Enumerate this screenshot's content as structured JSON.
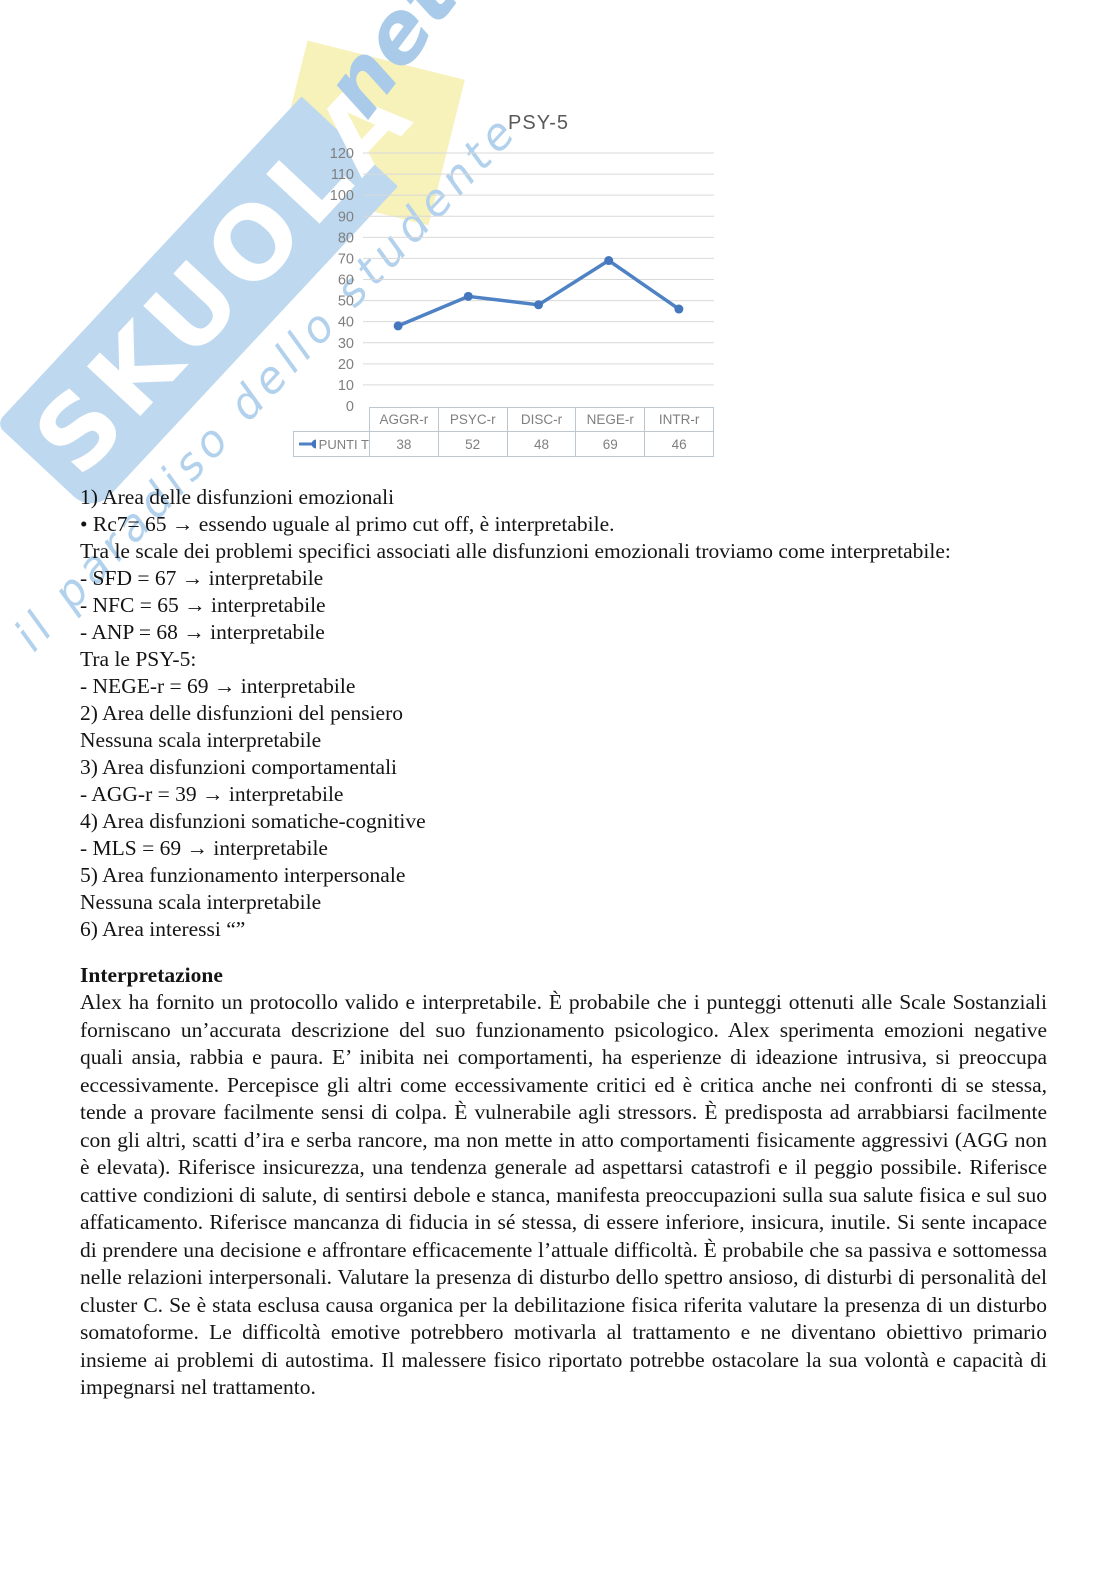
{
  "watermark": {
    "brand": "SKUOLA",
    "brand_suffix": "net",
    "tagline": "il paradiso dello studente",
    "band_color": "#bed9ef",
    "script_color": "#a9cbe9",
    "yellow_color": "#f7f1ba"
  },
  "chart_data": {
    "type": "line",
    "title": "PSY-5",
    "categories": [
      "AGGR-r",
      "PSYC-r",
      "DISC-r",
      "NEGE-r",
      "INTR-r"
    ],
    "series": [
      {
        "name": "PUNTI T",
        "values": [
          38,
          52,
          48,
          69,
          46
        ]
      }
    ],
    "ylim": [
      0,
      120
    ],
    "ytick_step": 10,
    "grid": true,
    "grid_color": "#d9d9d9",
    "line_color": "#4e82c4",
    "marker_color": "#4477bd",
    "marker": "circle",
    "legend_position": "data-table-left",
    "data_table": true,
    "axis_label_color": "#7f7f7f"
  },
  "report": {
    "lines": [
      "1) Area delle disfunzioni emozionali",
      "• Rc7= 65 → essendo uguale al primo cut off, è interpretabile.",
      "Tra le scale dei problemi specifici associati alle disfunzioni emozionali troviamo come interpretabile:",
      "- SFD = 67 → interpretabile",
      "- NFC = 65 → interpretabile",
      "- ANP = 68 → interpretabile",
      "Tra le PSY-5:",
      "- NEGE-r = 69 → interpretabile",
      "2) Area delle disfunzioni del pensiero",
      "Nessuna scala interpretabile",
      "3) Area disfunzioni comportamentali",
      "- AGG-r = 39 → interpretabile",
      "4) Area disfunzioni somatiche-cognitive",
      "- MLS = 69 → interpretabile",
      "5) Area funzionamento interpersonale",
      "Nessuna scala interpretabile",
      "6) Area interessi “”"
    ]
  },
  "interpretation": {
    "heading": "Interpretazione",
    "body": "Alex ha fornito un protocollo valido e interpretabile. È probabile che i punteggi ottenuti alle Scale Sostanziali forniscano un’accurata descrizione del suo funzionamento psicologico. Alex sperimenta emozioni negative quali ansia, rabbia e paura. E’ inibita nei comportamenti, ha esperienze di ideazione intrusiva, si preoccupa eccessivamente. Percepisce gli altri come eccessivamente critici ed è critica anche nei confronti di se stessa, tende a provare facilmente sensi di colpa. È vulnerabile agli stressors. È predisposta ad arrabbiarsi facilmente con gli altri, scatti d’ira e serba rancore, ma non mette in atto comportamenti fisicamente aggressivi (AGG non è elevata). Riferisce insicurezza, una tendenza generale ad aspettarsi catastrofi e il peggio possibile. Riferisce cattive condizioni di salute, di sentirsi debole e stanca, manifesta preoccupazioni sulla sua salute fisica e sul suo affaticamento. Riferisce mancanza di fiducia in sé stessa, di essere inferiore, insicura, inutile. Si sente incapace di prendere una decisione e affrontare efficacemente l’attuale difficoltà. È probabile che sa passiva e sottomessa nelle relazioni interpersonali. Valutare la presenza di disturbo dello spettro ansioso, di disturbi di personalità del cluster C. Se è stata esclusa causa organica per la debilitazione fisica riferita valutare la presenza di un disturbo somatoforme. Le difficoltà emotive potrebbero motivarla al trattamento e ne diventano obiettivo primario insieme ai problemi di autostima. Il malessere fisico riportato potrebbe ostacolare la sua volontà e capacità di impegnarsi nel trattamento."
  }
}
